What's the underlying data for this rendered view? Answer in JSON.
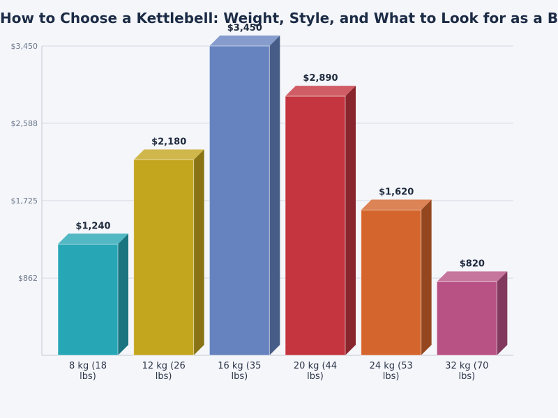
{
  "chart_data": {
    "type": "bar",
    "title": "How to Choose a Kettlebell: Weight, Style, and What to Look for as a Beginner",
    "xlabel": "",
    "ylabel": "",
    "categories": [
      "8 kg (18 lbs)",
      "12 kg (26 lbs)",
      "16 kg (35 lbs)",
      "20 kg (44 lbs)",
      "24 kg (53 lbs)",
      "32 kg (70 lbs)"
    ],
    "values": [
      1240,
      2180,
      3450,
      2890,
      1620,
      820
    ],
    "value_labels": [
      "$1,240",
      "$2,180",
      "$3,450",
      "$2,890",
      "$1,620",
      "$820"
    ],
    "ylim": [
      0,
      3450
    ],
    "y_ticks": [
      862,
      1725,
      2588,
      3450
    ],
    "y_tick_labels": [
      "$862",
      "$1,725",
      "$2,588",
      "$3,450"
    ],
    "grid": true,
    "legend": "none",
    "style": "3d",
    "colors": [
      "#27a6b5",
      "#c4a51e",
      "#6683c0",
      "#c4353f",
      "#d4652c",
      "#b85285"
    ]
  }
}
